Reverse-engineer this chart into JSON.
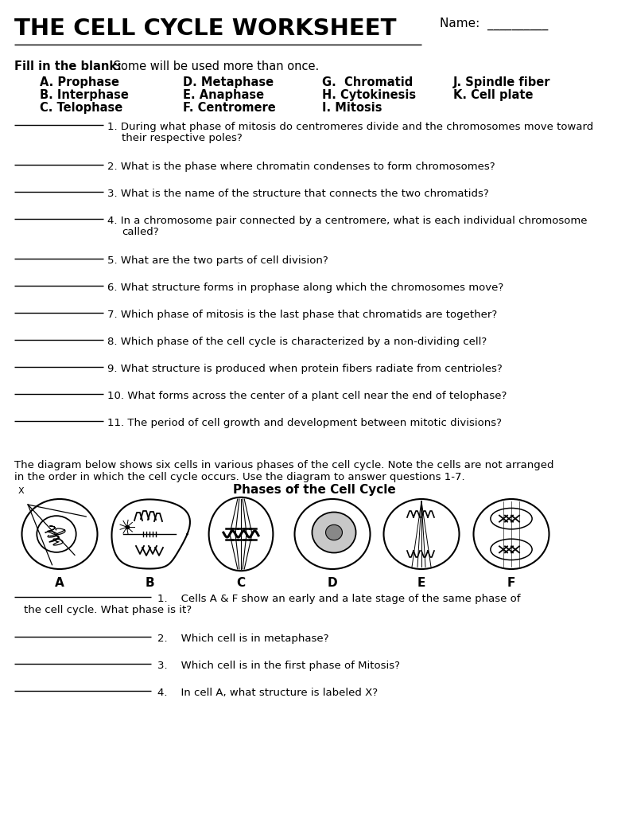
{
  "title": "THE CELL CYCLE WORKSHEET",
  "name_label": "Name: __________",
  "fill_in_blank_label": "Fill in the blank:",
  "fill_in_blank_rest": " Some will be used more than once.",
  "word_bank": [
    [
      "A. Prophase",
      "D. Metaphase",
      "G.  Chromatid",
      "J. Spindle fiber"
    ],
    [
      "B. Interphase",
      "E. Anaphase",
      "H. Cytokinesis",
      "K. Cell plate"
    ],
    [
      "C. Telophase",
      "F. Centromere",
      "I. Mitosis",
      ""
    ]
  ],
  "questions_part1": [
    [
      "1.",
      " During what phase of mitosis do centromeres divide and the chromosomes move toward",
      "their respective poles?",
      true
    ],
    [
      "2.",
      " What is the phase where chromatin condenses to form chromosomes?",
      "",
      false
    ],
    [
      "3.",
      " What is the name of the structure that connects the two chromatids?",
      "",
      false
    ],
    [
      "4.",
      " In a chromosome pair connected by a centromere, what is each individual chromosome",
      "called?",
      true
    ],
    [
      "5.",
      " What are the two parts of cell division?",
      "",
      false
    ],
    [
      "6.",
      " What structure forms in prophase along which the chromosomes move?",
      "",
      false
    ],
    [
      "7.",
      " Which phase of mitosis is the last phase that chromatids are together?",
      "",
      false
    ],
    [
      "8.",
      " Which phase of the cell cycle is characterized by a non-dividing cell?",
      "",
      false
    ],
    [
      "9.",
      " What structure is produced when protein fibers radiate from centrioles?",
      "",
      false
    ],
    [
      "10.",
      " What forms across the center of a plant cell near the end of telophase?",
      "",
      false
    ],
    [
      "11.",
      " The period of cell growth and development between mitotic divisions?",
      "",
      false
    ]
  ],
  "diagram_intro_1": "The diagram below shows six cells in various phases of the cell cycle. Note the cells are not arranged",
  "diagram_intro_2": "in the order in which the cell cycle occurs. Use the diagram to answer questions 1-7.",
  "diagram_title": "Phases of the Cell Cycle",
  "cell_labels": [
    "A",
    "B",
    "C",
    "D",
    "E",
    "F"
  ],
  "questions_part2": [
    [
      "1.",
      "Cells A & F show an early and a late stage of the same phase of",
      "the cell cycle. What phase is it?",
      true
    ],
    [
      "2.",
      "Which cell is in metaphase?",
      "",
      false
    ],
    [
      "3.",
      "Which cell is in the first phase of Mitosis?",
      "",
      false
    ],
    [
      "4.",
      "In cell A, what structure is labeled X?",
      "",
      false
    ]
  ],
  "background_color": "#ffffff",
  "text_color": "#000000"
}
